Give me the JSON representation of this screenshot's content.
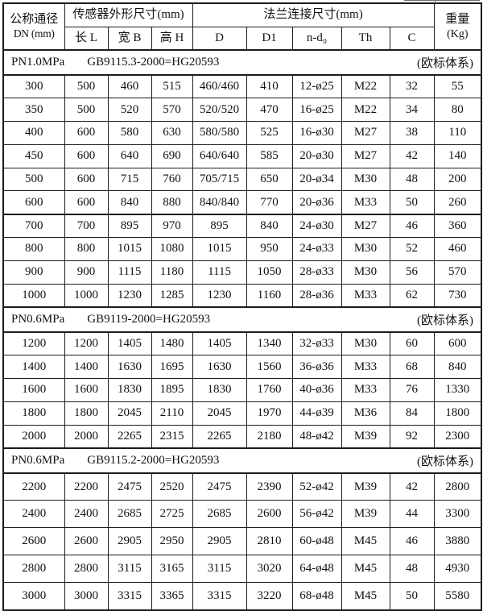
{
  "theme": {
    "border_color": "#1c1c1c",
    "text_color": "#121212",
    "background_color": "#ffffff"
  },
  "table": {
    "header": {
      "dn_line1": "公称通径",
      "dn_line2": "DN (mm)",
      "sensor_group": "传感器外形尺寸(mm)",
      "sensor_cols": [
        "长 L",
        "宽 B",
        "高 H"
      ],
      "flange_group": "法兰连接尺寸(mm)",
      "flange_cols": [
        "D",
        "D1",
        "n-d₀",
        "Th",
        "C"
      ],
      "weight_line1": "重量",
      "weight_line2": "(Kg)"
    },
    "sections": [
      {
        "pressure": "PN1.0MPa",
        "standard": "GB9115.3-2000=HG20593",
        "note": "(欧标体系)",
        "rows": [
          [
            "300",
            "500",
            "460",
            "515",
            "460/460",
            "410",
            "12-ø25",
            "M22",
            "32",
            "55"
          ],
          [
            "350",
            "500",
            "520",
            "570",
            "520/520",
            "470",
            "16-ø25",
            "M22",
            "34",
            "80"
          ],
          [
            "400",
            "600",
            "580",
            "630",
            "580/580",
            "525",
            "16-ø30",
            "M27",
            "38",
            "110"
          ],
          [
            "450",
            "600",
            "640",
            "690",
            "640/640",
            "585",
            "20-ø30",
            "M27",
            "42",
            "140"
          ],
          [
            "500",
            "600",
            "715",
            "760",
            "705/715",
            "650",
            "20-ø34",
            "M30",
            "48",
            "200"
          ],
          [
            "600",
            "600",
            "840",
            "880",
            "840/840",
            "770",
            "20-ø36",
            "M33",
            "50",
            "260"
          ],
          [
            "700",
            "700",
            "895",
            "970",
            "895",
            "840",
            "24-ø30",
            "M27",
            "46",
            "360"
          ],
          [
            "800",
            "800",
            "1015",
            "1080",
            "1015",
            "950",
            "24-ø33",
            "M30",
            "52",
            "460"
          ],
          [
            "900",
            "900",
            "1115",
            "1180",
            "1115",
            "1050",
            "28-ø33",
            "M30",
            "56",
            "570"
          ],
          [
            "1000",
            "1000",
            "1230",
            "1285",
            "1230",
            "1160",
            "28-ø36",
            "M33",
            "62",
            "730"
          ]
        ]
      },
      {
        "pressure": "PN0.6MPa",
        "standard": "GB9119-2000=HG20593",
        "note": "(欧标体系)",
        "rows": [
          [
            "1200",
            "1200",
            "1405",
            "1480",
            "1405",
            "1340",
            "32-ø33",
            "M30",
            "60",
            "600"
          ],
          [
            "1400",
            "1400",
            "1630",
            "1695",
            "1630",
            "1560",
            "36-ø36",
            "M33",
            "68",
            "840"
          ],
          [
            "1600",
            "1600",
            "1830",
            "1895",
            "1830",
            "1760",
            "40-ø36",
            "M33",
            "76",
            "1330"
          ],
          [
            "1800",
            "1800",
            "2045",
            "2110",
            "2045",
            "1970",
            "44-ø39",
            "M36",
            "84",
            "1800"
          ],
          [
            "2000",
            "2000",
            "2265",
            "2315",
            "2265",
            "2180",
            "48-ø42",
            "M39",
            "92",
            "2300"
          ]
        ]
      },
      {
        "pressure": "PN0.6MPa",
        "standard": "GB9115.2-2000=HG20593",
        "note": "(欧标体系)",
        "rows": [
          [
            "2200",
            "2200",
            "2475",
            "2520",
            "2475",
            "2390",
            "52-ø42",
            "M39",
            "42",
            "2800"
          ],
          [
            "2400",
            "2400",
            "2685",
            "2725",
            "2685",
            "2600",
            "56-ø42",
            "M39",
            "44",
            "3300"
          ],
          [
            "2600",
            "2600",
            "2905",
            "2950",
            "2905",
            "2810",
            "60-ø48",
            "M45",
            "46",
            "3880"
          ],
          [
            "2800",
            "2800",
            "3115",
            "3165",
            "3115",
            "3020",
            "64-ø48",
            "M45",
            "48",
            "4930"
          ],
          [
            "3000",
            "3000",
            "3315",
            "3365",
            "3315",
            "3220",
            "68-ø48",
            "M45",
            "50",
            "5580"
          ]
        ]
      }
    ]
  }
}
